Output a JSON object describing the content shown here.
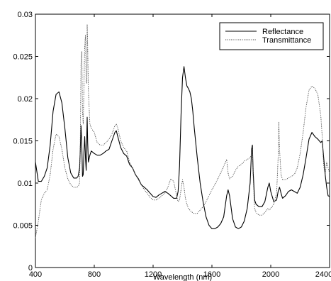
{
  "chart_data": {
    "type": "line",
    "title": "",
    "xlabel": "Wavelength (nm)",
    "ylabel": "",
    "xlim": [
      400,
      2400
    ],
    "ylim": [
      0,
      0.03
    ],
    "x_ticks": [
      400,
      800,
      1200,
      1600,
      2000,
      2400
    ],
    "x_tick_labels": [
      "400",
      "800",
      "1200",
      "1600",
      "2000",
      "2400"
    ],
    "y_ticks": [
      0,
      0.005,
      0.01,
      0.015,
      0.02,
      0.025,
      0.03
    ],
    "y_tick_labels": [
      "0",
      "0.005",
      "0.01",
      "0.015",
      "0.02",
      "0.025",
      "0.03"
    ],
    "grid": false,
    "legend_position": "top-right",
    "series": [
      {
        "name": "Reflectance",
        "line_style": "solid",
        "color": "#000000",
        "points": [
          [
            400,
            0.0125
          ],
          [
            420,
            0.0102
          ],
          [
            440,
            0.0102
          ],
          [
            460,
            0.0108
          ],
          [
            480,
            0.0118
          ],
          [
            500,
            0.0145
          ],
          [
            520,
            0.0185
          ],
          [
            540,
            0.0205
          ],
          [
            560,
            0.0208
          ],
          [
            580,
            0.0195
          ],
          [
            600,
            0.0165
          ],
          [
            620,
            0.013
          ],
          [
            640,
            0.0112
          ],
          [
            660,
            0.0106
          ],
          [
            680,
            0.0106
          ],
          [
            690,
            0.0108
          ],
          [
            700,
            0.0118
          ],
          [
            705,
            0.014
          ],
          [
            710,
            0.0168
          ],
          [
            715,
            0.0145
          ],
          [
            720,
            0.0108
          ],
          [
            725,
            0.011
          ],
          [
            730,
            0.0138
          ],
          [
            735,
            0.0155
          ],
          [
            740,
            0.013
          ],
          [
            745,
            0.0115
          ],
          [
            750,
            0.0162
          ],
          [
            752,
            0.0178
          ],
          [
            755,
            0.0148
          ],
          [
            760,
            0.0125
          ],
          [
            770,
            0.0133
          ],
          [
            780,
            0.0138
          ],
          [
            800,
            0.0135
          ],
          [
            820,
            0.0133
          ],
          [
            840,
            0.0133
          ],
          [
            860,
            0.0135
          ],
          [
            880,
            0.0138
          ],
          [
            900,
            0.014
          ],
          [
            920,
            0.015
          ],
          [
            940,
            0.016
          ],
          [
            950,
            0.0162
          ],
          [
            960,
            0.0155
          ],
          [
            980,
            0.0142
          ],
          [
            1000,
            0.0135
          ],
          [
            1020,
            0.0132
          ],
          [
            1040,
            0.0122
          ],
          [
            1060,
            0.0118
          ],
          [
            1080,
            0.011
          ],
          [
            1100,
            0.0105
          ],
          [
            1120,
            0.0098
          ],
          [
            1140,
            0.0095
          ],
          [
            1160,
            0.0092
          ],
          [
            1180,
            0.0088
          ],
          [
            1200,
            0.0084
          ],
          [
            1220,
            0.0083
          ],
          [
            1240,
            0.0086
          ],
          [
            1260,
            0.0088
          ],
          [
            1280,
            0.009
          ],
          [
            1300,
            0.0088
          ],
          [
            1320,
            0.0085
          ],
          [
            1340,
            0.0082
          ],
          [
            1360,
            0.0082
          ],
          [
            1370,
            0.009
          ],
          [
            1380,
            0.012
          ],
          [
            1390,
            0.018
          ],
          [
            1400,
            0.0225
          ],
          [
            1410,
            0.0238
          ],
          [
            1420,
            0.0225
          ],
          [
            1430,
            0.0215
          ],
          [
            1440,
            0.0212
          ],
          [
            1450,
            0.0208
          ],
          [
            1460,
            0.02
          ],
          [
            1470,
            0.0185
          ],
          [
            1480,
            0.0165
          ],
          [
            1500,
            0.013
          ],
          [
            1520,
            0.01
          ],
          [
            1540,
            0.0078
          ],
          [
            1560,
            0.006
          ],
          [
            1580,
            0.005
          ],
          [
            1600,
            0.0046
          ],
          [
            1620,
            0.0046
          ],
          [
            1640,
            0.0048
          ],
          [
            1660,
            0.0052
          ],
          [
            1680,
            0.006
          ],
          [
            1700,
            0.0085
          ],
          [
            1710,
            0.0092
          ],
          [
            1720,
            0.0085
          ],
          [
            1740,
            0.0058
          ],
          [
            1760,
            0.0048
          ],
          [
            1780,
            0.0046
          ],
          [
            1800,
            0.0048
          ],
          [
            1820,
            0.0055
          ],
          [
            1840,
            0.007
          ],
          [
            1860,
            0.01
          ],
          [
            1870,
            0.014
          ],
          [
            1875,
            0.0145
          ],
          [
            1880,
            0.0115
          ],
          [
            1890,
            0.008
          ],
          [
            1900,
            0.0075
          ],
          [
            1920,
            0.0072
          ],
          [
            1940,
            0.0072
          ],
          [
            1960,
            0.0078
          ],
          [
            1980,
            0.0095
          ],
          [
            1990,
            0.01
          ],
          [
            2000,
            0.009
          ],
          [
            2020,
            0.0078
          ],
          [
            2040,
            0.008
          ],
          [
            2050,
            0.009
          ],
          [
            2060,
            0.0095
          ],
          [
            2070,
            0.0088
          ],
          [
            2080,
            0.0082
          ],
          [
            2100,
            0.0085
          ],
          [
            2120,
            0.009
          ],
          [
            2140,
            0.0092
          ],
          [
            2160,
            0.009
          ],
          [
            2180,
            0.0088
          ],
          [
            2200,
            0.0095
          ],
          [
            2220,
            0.011
          ],
          [
            2240,
            0.013
          ],
          [
            2260,
            0.0152
          ],
          [
            2280,
            0.016
          ],
          [
            2300,
            0.0155
          ],
          [
            2320,
            0.0152
          ],
          [
            2340,
            0.0148
          ],
          [
            2350,
            0.015
          ],
          [
            2360,
            0.013
          ],
          [
            2370,
            0.011
          ],
          [
            2380,
            0.0095
          ],
          [
            2390,
            0.0085
          ],
          [
            2400,
            0.0084
          ]
        ]
      },
      {
        "name": "Transmittance",
        "line_style": "dotted",
        "color": "#444444",
        "points": [
          [
            400,
            0.0035
          ],
          [
            420,
            0.0055
          ],
          [
            440,
            0.008
          ],
          [
            460,
            0.0088
          ],
          [
            480,
            0.0092
          ],
          [
            500,
            0.011
          ],
          [
            520,
            0.014
          ],
          [
            540,
            0.0158
          ],
          [
            560,
            0.0155
          ],
          [
            580,
            0.014
          ],
          [
            600,
            0.0118
          ],
          [
            620,
            0.0105
          ],
          [
            640,
            0.0098
          ],
          [
            660,
            0.0095
          ],
          [
            680,
            0.0095
          ],
          [
            690,
            0.0096
          ],
          [
            700,
            0.01
          ],
          [
            705,
            0.015
          ],
          [
            710,
            0.024
          ],
          [
            715,
            0.0256
          ],
          [
            720,
            0.0185
          ],
          [
            725,
            0.017
          ],
          [
            730,
            0.0218
          ],
          [
            735,
            0.0262
          ],
          [
            740,
            0.0275
          ],
          [
            745,
            0.022
          ],
          [
            750,
            0.0218
          ],
          [
            752,
            0.0288
          ],
          [
            755,
            0.0262
          ],
          [
            760,
            0.021
          ],
          [
            770,
            0.017
          ],
          [
            780,
            0.0165
          ],
          [
            800,
            0.016
          ],
          [
            820,
            0.0148
          ],
          [
            840,
            0.0145
          ],
          [
            860,
            0.0145
          ],
          [
            880,
            0.0148
          ],
          [
            900,
            0.0152
          ],
          [
            920,
            0.0158
          ],
          [
            940,
            0.0168
          ],
          [
            950,
            0.017
          ],
          [
            960,
            0.0165
          ],
          [
            980,
            0.015
          ],
          [
            1000,
            0.0142
          ],
          [
            1020,
            0.0138
          ],
          [
            1040,
            0.0125
          ],
          [
            1060,
            0.0118
          ],
          [
            1080,
            0.011
          ],
          [
            1100,
            0.0104
          ],
          [
            1120,
            0.0098
          ],
          [
            1140,
            0.0092
          ],
          [
            1160,
            0.0088
          ],
          [
            1180,
            0.0083
          ],
          [
            1200,
            0.008
          ],
          [
            1220,
            0.008
          ],
          [
            1240,
            0.0082
          ],
          [
            1260,
            0.0085
          ],
          [
            1280,
            0.0088
          ],
          [
            1300,
            0.0095
          ],
          [
            1320,
            0.0105
          ],
          [
            1340,
            0.0102
          ],
          [
            1360,
            0.0085
          ],
          [
            1370,
            0.0078
          ],
          [
            1380,
            0.008
          ],
          [
            1390,
            0.0092
          ],
          [
            1400,
            0.0104
          ],
          [
            1410,
            0.0095
          ],
          [
            1420,
            0.0082
          ],
          [
            1430,
            0.0075
          ],
          [
            1440,
            0.007
          ],
          [
            1450,
            0.0068
          ],
          [
            1460,
            0.0066
          ],
          [
            1480,
            0.0064
          ],
          [
            1500,
            0.0064
          ],
          [
            1520,
            0.0068
          ],
          [
            1540,
            0.0072
          ],
          [
            1560,
            0.0078
          ],
          [
            1580,
            0.0085
          ],
          [
            1600,
            0.0092
          ],
          [
            1620,
            0.0098
          ],
          [
            1640,
            0.0105
          ],
          [
            1660,
            0.0112
          ],
          [
            1680,
            0.012
          ],
          [
            1700,
            0.0128
          ],
          [
            1710,
            0.0112
          ],
          [
            1720,
            0.0105
          ],
          [
            1740,
            0.0108
          ],
          [
            1760,
            0.0115
          ],
          [
            1780,
            0.012
          ],
          [
            1800,
            0.0122
          ],
          [
            1820,
            0.0126
          ],
          [
            1840,
            0.0128
          ],
          [
            1860,
            0.013
          ],
          [
            1870,
            0.0135
          ],
          [
            1875,
            0.0142
          ],
          [
            1880,
            0.011
          ],
          [
            1890,
            0.007
          ],
          [
            1900,
            0.0065
          ],
          [
            1920,
            0.0062
          ],
          [
            1940,
            0.0062
          ],
          [
            1960,
            0.0065
          ],
          [
            1980,
            0.007
          ],
          [
            1990,
            0.0068
          ],
          [
            2000,
            0.007
          ],
          [
            2020,
            0.0075
          ],
          [
            2040,
            0.0088
          ],
          [
            2050,
            0.013
          ],
          [
            2055,
            0.0172
          ],
          [
            2060,
            0.014
          ],
          [
            2070,
            0.011
          ],
          [
            2080,
            0.0104
          ],
          [
            2100,
            0.0104
          ],
          [
            2120,
            0.0106
          ],
          [
            2140,
            0.0108
          ],
          [
            2160,
            0.011
          ],
          [
            2180,
            0.0118
          ],
          [
            2200,
            0.0135
          ],
          [
            2220,
            0.016
          ],
          [
            2240,
            0.019
          ],
          [
            2260,
            0.021
          ],
          [
            2280,
            0.0215
          ],
          [
            2300,
            0.0212
          ],
          [
            2320,
            0.0205
          ],
          [
            2340,
            0.018
          ],
          [
            2350,
            0.0155
          ],
          [
            2360,
            0.012
          ],
          [
            2370,
            0.011
          ],
          [
            2380,
            0.0125
          ],
          [
            2390,
            0.0118
          ],
          [
            2400,
            0.0112
          ]
        ]
      }
    ]
  }
}
